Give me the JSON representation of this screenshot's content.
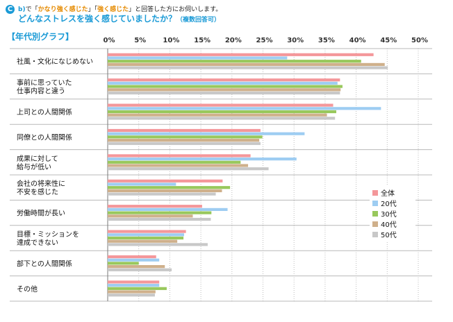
{
  "header": {
    "badge": "C",
    "question_id": "b)",
    "line1_pre": "で「",
    "line1_hl1": "かなり強く感じた",
    "line1_mid": "」「",
    "line1_hl2": "強く感じた",
    "line1_post": "」と回答した方にお伺いします。",
    "title": "どんなストレスを強く感じていましたか？",
    "title_note": "（複数回答可）",
    "section_label": "【年代別グラフ】"
  },
  "colors": {
    "accent": "#1a9ad6",
    "highlight": "#e58a00",
    "series": [
      "#f4979a",
      "#9ecdf2",
      "#98c85c",
      "#cfb08b",
      "#c8c8c8"
    ]
  },
  "chart_data": {
    "type": "bar",
    "orientation": "horizontal",
    "title": "どんなストレスを強く感じていましたか？",
    "xlabel": "",
    "ylabel": "",
    "xlim": [
      0,
      50
    ],
    "ticks": [
      0,
      5,
      10,
      15,
      20,
      25,
      30,
      35,
      40,
      45,
      50
    ],
    "tick_labels": [
      "0%",
      "5%",
      "10%",
      "15%",
      "20%",
      "25%",
      "30%",
      "35%",
      "40%",
      "45%",
      "50%"
    ],
    "legend_position": "right",
    "categories": [
      [
        "社風・文化になじめない"
      ],
      [
        "事前に思っていた",
        "仕事内容と違う"
      ],
      [
        "上司との人間関係"
      ],
      [
        "同僚との人間関係"
      ],
      [
        "成果に対して",
        "給与が低い"
      ],
      [
        "会社の将来性に",
        "不安を感じた"
      ],
      [
        "労働時間が長い"
      ],
      [
        "目標・ミッションを",
        "達成できない"
      ],
      [
        "部下との人間関係"
      ],
      [
        "その他"
      ]
    ],
    "series": [
      {
        "name": "全体",
        "values": [
          42.8,
          37.4,
          36.3,
          24.6,
          23.0,
          18.5,
          15.2,
          12.6,
          7.8,
          8.3
        ]
      },
      {
        "name": "20代",
        "values": [
          28.9,
          37.0,
          44.0,
          31.7,
          30.4,
          11.0,
          19.3,
          12.3,
          8.3,
          8.3
        ]
      },
      {
        "name": "30代",
        "values": [
          40.8,
          37.8,
          36.8,
          24.9,
          21.4,
          19.7,
          16.7,
          12.2,
          5.0,
          9.5
        ]
      },
      {
        "name": "40代",
        "values": [
          44.6,
          37.5,
          35.3,
          24.4,
          22.6,
          18.4,
          13.7,
          11.2,
          9.2,
          7.7
        ]
      },
      {
        "name": "50代",
        "values": [
          45.1,
          37.4,
          36.6,
          24.6,
          25.9,
          17.4,
          16.6,
          16.1,
          10.3,
          7.6
        ]
      }
    ]
  }
}
